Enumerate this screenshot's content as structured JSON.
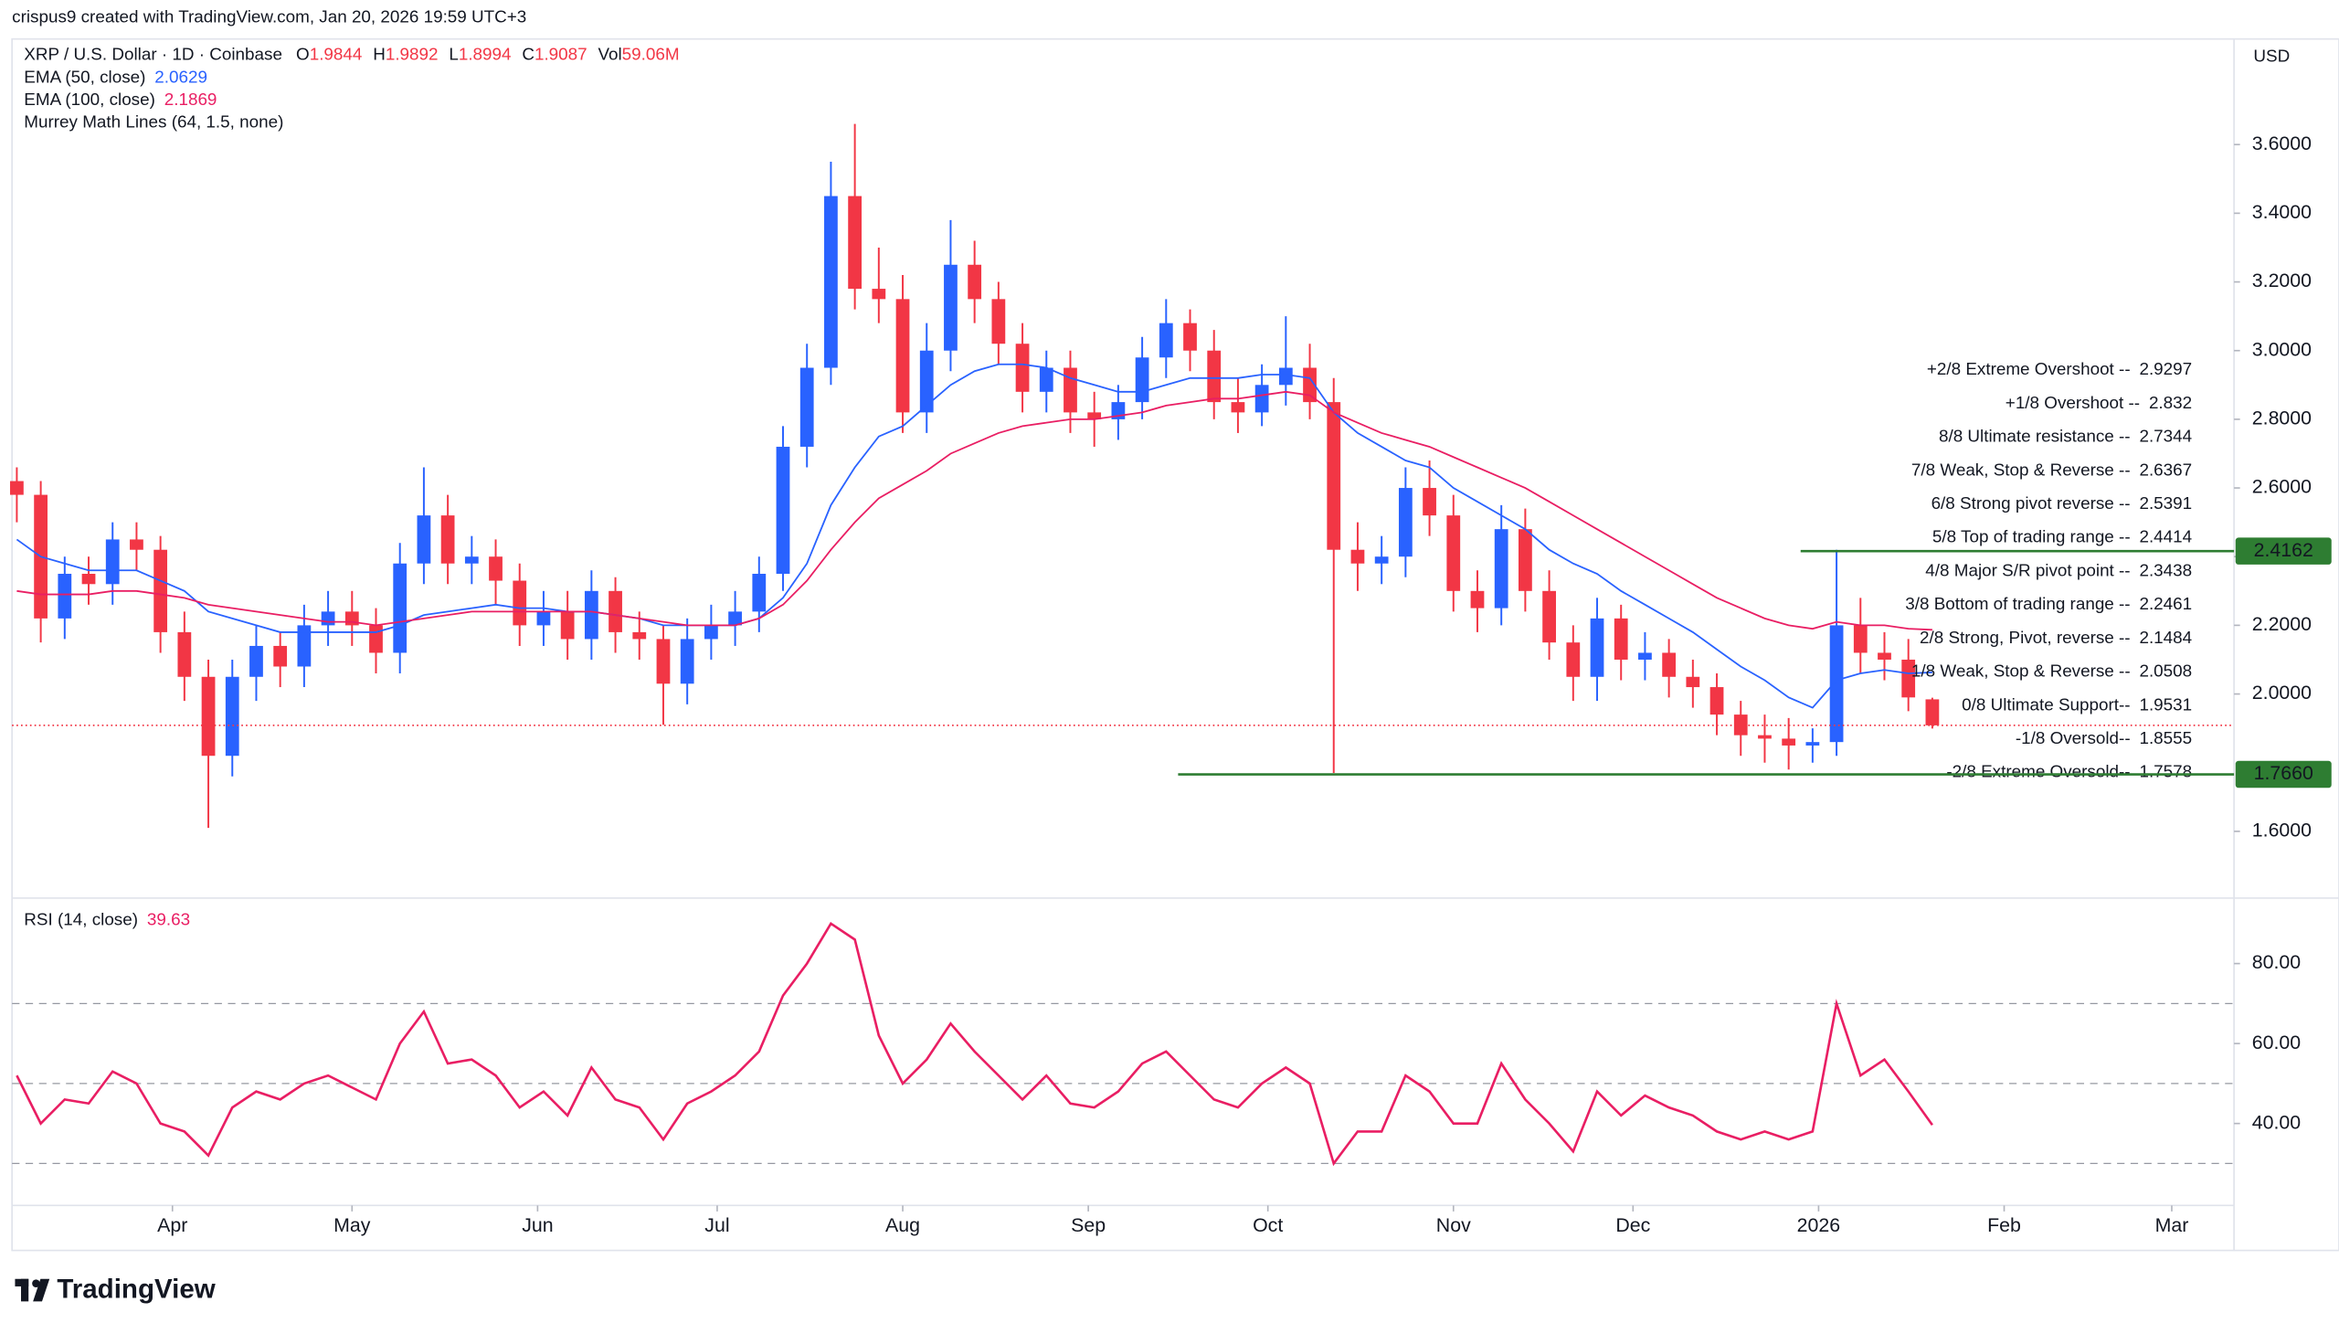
{
  "header": {
    "credit": "crispus9 created with TradingView.com, Jan 20, 2026 19:59 UTC+3",
    "symbol": "XRP / U.S. Dollar · 1D · Coinbase",
    "ohlc_labels": [
      "O",
      "H",
      "L",
      "C",
      "Vol"
    ],
    "volume": "59.06M",
    "currency": "USD",
    "study": "Murrey Math Lines (64, 1.5, none)"
  },
  "footer": {
    "brand": "TradingView"
  },
  "chart_data": [
    {
      "type": "candlestick",
      "up_color": "#2962ff",
      "down_color": "#f23645",
      "open": [
        2.62,
        2.58,
        2.22,
        2.35,
        2.32,
        2.45,
        2.42,
        2.18,
        2.05,
        1.82,
        2.05,
        2.14,
        2.08,
        2.2,
        2.24,
        2.2,
        2.12,
        2.38,
        2.52,
        2.38,
        2.4,
        2.33,
        2.2,
        2.24,
        2.16,
        2.3,
        2.18,
        2.16,
        2.03,
        2.16,
        2.2,
        2.24,
        2.35,
        2.72,
        2.95,
        3.45,
        3.18,
        3.15,
        2.82,
        3.0,
        3.25,
        3.15,
        3.02,
        2.88,
        2.95,
        2.82,
        2.8,
        2.85,
        2.98,
        3.08,
        3.0,
        2.85,
        2.82,
        2.9,
        2.95,
        2.85,
        2.42,
        2.38,
        2.4,
        2.6,
        2.52,
        2.3,
        2.25,
        2.48,
        2.3,
        2.15,
        2.05,
        2.22,
        2.1,
        2.12,
        2.05,
        2.02,
        1.94,
        1.88,
        1.87,
        1.85,
        1.86,
        2.2,
        2.12,
        2.1,
        1.9844
      ],
      "high": [
        2.66,
        2.62,
        2.4,
        2.4,
        2.5,
        2.5,
        2.46,
        2.24,
        2.1,
        2.1,
        2.2,
        2.18,
        2.26,
        2.3,
        2.3,
        2.25,
        2.44,
        2.66,
        2.58,
        2.46,
        2.45,
        2.38,
        2.3,
        2.3,
        2.36,
        2.34,
        2.24,
        2.2,
        2.22,
        2.26,
        2.3,
        2.4,
        2.78,
        3.02,
        3.55,
        3.66,
        3.3,
        3.22,
        3.08,
        3.38,
        3.32,
        3.2,
        3.08,
        3.0,
        3.0,
        2.88,
        2.9,
        3.04,
        3.15,
        3.12,
        3.06,
        2.92,
        2.96,
        3.1,
        3.02,
        2.92,
        2.5,
        2.46,
        2.66,
        2.68,
        2.58,
        2.36,
        2.55,
        2.54,
        2.36,
        2.2,
        2.28,
        2.26,
        2.18,
        2.16,
        2.1,
        2.06,
        1.98,
        1.94,
        1.93,
        1.9,
        2.42,
        2.28,
        2.18,
        2.16,
        1.9892
      ],
      "low": [
        2.5,
        2.15,
        2.16,
        2.26,
        2.26,
        2.36,
        2.12,
        1.98,
        1.61,
        1.76,
        1.98,
        2.02,
        2.02,
        2.14,
        2.14,
        2.06,
        2.06,
        2.32,
        2.32,
        2.32,
        2.26,
        2.14,
        2.14,
        2.1,
        2.1,
        2.12,
        2.1,
        1.91,
        1.97,
        2.1,
        2.14,
        2.18,
        2.3,
        2.66,
        2.9,
        3.12,
        3.08,
        2.76,
        2.76,
        2.94,
        3.08,
        2.96,
        2.82,
        2.82,
        2.76,
        2.72,
        2.74,
        2.8,
        2.92,
        2.94,
        2.8,
        2.76,
        2.78,
        2.84,
        2.8,
        1.77,
        2.3,
        2.32,
        2.34,
        2.46,
        2.24,
        2.18,
        2.2,
        2.24,
        2.1,
        1.98,
        1.98,
        2.04,
        2.04,
        1.99,
        1.96,
        1.88,
        1.82,
        1.8,
        1.78,
        1.8,
        1.82,
        2.06,
        2.04,
        1.95,
        1.8994
      ],
      "close": [
        2.58,
        2.22,
        2.35,
        2.32,
        2.45,
        2.42,
        2.18,
        2.05,
        1.82,
        2.05,
        2.14,
        2.08,
        2.2,
        2.24,
        2.2,
        2.12,
        2.38,
        2.52,
        2.38,
        2.4,
        2.33,
        2.2,
        2.24,
        2.16,
        2.3,
        2.18,
        2.16,
        2.03,
        2.16,
        2.2,
        2.24,
        2.35,
        2.72,
        2.95,
        3.45,
        3.18,
        3.15,
        2.82,
        3.0,
        3.25,
        3.15,
        3.02,
        2.88,
        2.95,
        2.82,
        2.8,
        2.85,
        2.98,
        3.08,
        3.0,
        2.85,
        2.82,
        2.9,
        2.95,
        2.85,
        2.42,
        2.38,
        2.4,
        2.6,
        2.52,
        2.3,
        2.25,
        2.48,
        2.3,
        2.15,
        2.05,
        2.22,
        2.1,
        2.12,
        2.05,
        2.02,
        1.94,
        1.88,
        1.87,
        1.85,
        1.86,
        2.2,
        2.12,
        2.1,
        1.99,
        1.9087
      ],
      "series": [
        {
          "name": "EMA (50, close)",
          "color": "#2962ff",
          "values": [
            2.45,
            2.4,
            2.38,
            2.36,
            2.36,
            2.36,
            2.33,
            2.3,
            2.24,
            2.22,
            2.2,
            2.18,
            2.18,
            2.18,
            2.18,
            2.18,
            2.2,
            2.23,
            2.24,
            2.25,
            2.26,
            2.25,
            2.25,
            2.24,
            2.24,
            2.23,
            2.22,
            2.2,
            2.2,
            2.2,
            2.2,
            2.22,
            2.28,
            2.38,
            2.55,
            2.66,
            2.75,
            2.78,
            2.84,
            2.9,
            2.94,
            2.96,
            2.96,
            2.95,
            2.92,
            2.9,
            2.88,
            2.88,
            2.9,
            2.92,
            2.92,
            2.92,
            2.93,
            2.93,
            2.92,
            2.82,
            2.76,
            2.72,
            2.68,
            2.66,
            2.6,
            2.56,
            2.52,
            2.48,
            2.42,
            2.38,
            2.35,
            2.3,
            2.26,
            2.22,
            2.18,
            2.13,
            2.08,
            2.04,
            1.99,
            1.96,
            2.04,
            2.06,
            2.07,
            2.06,
            2.0629
          ]
        },
        {
          "name": "EMA (100, close)",
          "color": "#e91e63",
          "values": [
            2.3,
            2.29,
            2.29,
            2.29,
            2.3,
            2.3,
            2.29,
            2.28,
            2.26,
            2.25,
            2.24,
            2.23,
            2.22,
            2.21,
            2.21,
            2.2,
            2.21,
            2.22,
            2.23,
            2.24,
            2.24,
            2.24,
            2.24,
            2.24,
            2.24,
            2.23,
            2.22,
            2.21,
            2.2,
            2.2,
            2.2,
            2.22,
            2.26,
            2.33,
            2.42,
            2.5,
            2.57,
            2.61,
            2.65,
            2.7,
            2.73,
            2.76,
            2.78,
            2.79,
            2.8,
            2.8,
            2.81,
            2.82,
            2.84,
            2.85,
            2.86,
            2.86,
            2.87,
            2.88,
            2.87,
            2.82,
            2.79,
            2.76,
            2.74,
            2.72,
            2.69,
            2.66,
            2.63,
            2.6,
            2.56,
            2.52,
            2.48,
            2.44,
            2.4,
            2.36,
            2.32,
            2.28,
            2.25,
            2.22,
            2.2,
            2.19,
            2.21,
            2.2,
            2.2,
            2.19,
            2.1869
          ]
        }
      ],
      "murrey_lines": [
        {
          "name": "+2/8 Extreme Overshoot --",
          "value": 2.9297,
          "color": "#f23645"
        },
        {
          "name": "+1/8 Overshoot --",
          "value": 2.832,
          "color": "#f23645"
        },
        {
          "name": "8/8 Ultimate resistance --",
          "value": 2.7344,
          "color": "#00a6c7"
        },
        {
          "name": "7/8 Weak, Stop & Reverse --",
          "value": 2.6367,
          "color": "#f59300"
        },
        {
          "name": "6/8 Strong pivot reverse --",
          "value": 2.5391,
          "color": "#d63de0"
        },
        {
          "name": "5/8 Top of trading range --",
          "value": 2.4414,
          "color": "#43a047"
        },
        {
          "name": "4/8 Major S/R pivot point --",
          "value": 2.3438,
          "color": "#00a6c7"
        },
        {
          "name": "3/8 Bottom of trading range --",
          "value": 2.2461,
          "color": "#43a047"
        },
        {
          "name": "2/8 Strong, Pivot, reverse --",
          "value": 2.1484,
          "color": "#d63de0"
        },
        {
          "name": "1/8 Weak, Stop & Reverse --",
          "value": 2.0508,
          "color": "#f59300"
        },
        {
          "name": "0/8 Ultimate Support--",
          "value": 1.9531,
          "color": "#00a6c7"
        },
        {
          "name": "-1/8 Oversold--",
          "value": 1.8555,
          "color": "#2e7d32"
        },
        {
          "name": "-2/8 Extreme Oversold--",
          "value": 1.7578,
          "color": "#43a047"
        }
      ],
      "levels": [
        {
          "value": 2.4162,
          "color": "#2e7d32",
          "from": 74.5
        },
        {
          "value": {
            "value": 1.766,
            "label": "1.7660"
          },
          "color": "#2e7d32",
          "from": 48.5
        }
      ],
      "xlim": [
        -0.2,
        92.6
      ],
      "ylim": [
        1.41,
        3.89
      ],
      "yticks": [
        {
          "value": 1.6,
          "label": "1.6000"
        },
        {
          "value": 2.0,
          "label": "2.0000"
        },
        {
          "value": 2.2,
          "label": "2.2000"
        },
        {
          "value": 2.4,
          "label": "2.4000"
        },
        {
          "value": 2.6,
          "label": "2.6000"
        },
        {
          "value": 2.8,
          "label": "2.8000"
        },
        {
          "value": 3.0,
          "label": "3.0000"
        },
        {
          "value": 3.2,
          "label": "3.2000"
        },
        {
          "value": 3.4,
          "label": "3.4000"
        },
        {
          "value": 3.6,
          "label": "3.6000"
        }
      ],
      "grid": false
    },
    {
      "type": "line",
      "series": [
        {
          "name": "RSI (14, close)",
          "color": "#e91e63",
          "values": [
            52,
            40,
            46,
            45,
            53,
            50,
            40,
            38,
            32,
            44,
            48,
            46,
            50,
            52,
            49,
            46,
            60,
            68,
            55,
            56,
            52,
            44,
            48,
            42,
            54,
            46,
            44,
            36,
            45,
            48,
            52,
            58,
            72,
            80,
            90,
            86,
            62,
            50,
            56,
            65,
            58,
            52,
            46,
            52,
            45,
            44,
            48,
            55,
            58,
            52,
            46,
            44,
            50,
            54,
            50,
            30,
            38,
            38,
            52,
            48,
            40,
            40,
            55,
            46,
            40,
            33,
            48,
            42,
            47,
            44,
            42,
            38,
            36,
            38,
            36,
            38,
            70,
            52,
            56,
            48,
            39.63
          ]
        }
      ],
      "bands": [
        30,
        50,
        70
      ],
      "xlim": [
        -0.2,
        92.6
      ],
      "ylim": [
        21,
        96
      ],
      "yticks": [
        {
          "value": 40,
          "label": "40.00"
        },
        {
          "value": 60,
          "label": "60.00"
        },
        {
          "value": 80,
          "label": "80.00"
        }
      ],
      "xticks": [
        {
          "value": 6.5,
          "label": "Apr"
        },
        {
          "value": 14,
          "label": "May"
        },
        {
          "value": 21.75,
          "label": "Jun"
        },
        {
          "value": 29.25,
          "label": "Jul"
        },
        {
          "value": 37,
          "label": "Aug"
        },
        {
          "value": 44.75,
          "label": "Sep"
        },
        {
          "value": 52.25,
          "label": "Oct"
        },
        {
          "value": 60,
          "label": "Nov"
        },
        {
          "value": 67.5,
          "label": "Dec"
        },
        {
          "value": 75.25,
          "label": "2026"
        },
        {
          "value": 83,
          "label": "Feb"
        },
        {
          "value": 90,
          "label": "Mar"
        }
      ],
      "grid": false
    }
  ]
}
